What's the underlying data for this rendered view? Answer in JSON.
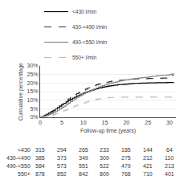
{
  "chart_data": {
    "type": "step",
    "xlabel": "Follow-up time (years)",
    "ylabel": "Cumulative percentage",
    "xlim": [
      0,
      31.5
    ],
    "ylim": [
      0,
      0.3
    ],
    "xticks": [
      0,
      5,
      10,
      15,
      20,
      25,
      30
    ],
    "yticks": [
      {
        "value": 0.0,
        "label": "0%"
      },
      {
        "value": 0.05,
        "label": "5%"
      },
      {
        "value": 0.1,
        "label": "10%"
      },
      {
        "value": 0.15,
        "label": "15%"
      },
      {
        "value": 0.2,
        "label": "20%"
      },
      {
        "value": 0.25,
        "label": "25%"
      },
      {
        "value": 0.3,
        "label": "30%"
      }
    ],
    "grid": "y",
    "legend": "upper left",
    "x": [
      0,
      0.3,
      0.6,
      1,
      1.5,
      2,
      2.5,
      3,
      3.5,
      4,
      4.5,
      5,
      5.5,
      6,
      6.5,
      7,
      7.5,
      8,
      8.5,
      9,
      9.5,
      10,
      10.5,
      11,
      11.5,
      12,
      12.5,
      13,
      13.5,
      14,
      14.5,
      15,
      15.5,
      16,
      16.5,
      17,
      17.5,
      18,
      18.5,
      19,
      19.5,
      20,
      20.5,
      21,
      21.5,
      22,
      22.5,
      23,
      23.5,
      24,
      24.5,
      25,
      25.5,
      26,
      26.5,
      27,
      27.5,
      28,
      28.5,
      29,
      29.5,
      30,
      30.5,
      31
    ],
    "series": [
      {
        "name": "<430 l/min",
        "color": "#000000",
        "line_style": "solid",
        "values": [
          0,
          0.003,
          0.007,
          0.012,
          0.018,
          0.025,
          0.033,
          0.04,
          0.048,
          0.057,
          0.065,
          0.075,
          0.082,
          0.09,
          0.098,
          0.105,
          0.112,
          0.118,
          0.124,
          0.13,
          0.136,
          0.141,
          0.146,
          0.15,
          0.155,
          0.159,
          0.163,
          0.167,
          0.17,
          0.173,
          0.176,
          0.179,
          0.181,
          0.183,
          0.185,
          0.187,
          0.188,
          0.19,
          0.191,
          0.192,
          0.193,
          0.194,
          0.195,
          0.196,
          0.197,
          0.198,
          0.199,
          0.199,
          0.2,
          0.2,
          0.2,
          0.201,
          0.201,
          0.201,
          0.201,
          0.202,
          0.202,
          0.202,
          0.202,
          0.202,
          0.203,
          0.203,
          0.203,
          0.203
        ]
      },
      {
        "name": "430-<490 l/min",
        "color": "#333333",
        "line_style": "dashed",
        "values": [
          0,
          0.002,
          0.005,
          0.009,
          0.015,
          0.022,
          0.03,
          0.038,
          0.047,
          0.056,
          0.066,
          0.076,
          0.087,
          0.097,
          0.107,
          0.116,
          0.124,
          0.132,
          0.139,
          0.146,
          0.153,
          0.159,
          0.165,
          0.171,
          0.176,
          0.181,
          0.186,
          0.19,
          0.194,
          0.197,
          0.2,
          0.203,
          0.205,
          0.208,
          0.21,
          0.212,
          0.213,
          0.215,
          0.216,
          0.218,
          0.219,
          0.22,
          0.221,
          0.222,
          0.223,
          0.224,
          0.224,
          0.225,
          0.225,
          0.226,
          0.226,
          0.227,
          0.227,
          0.227,
          0.228,
          0.228,
          0.228,
          0.228,
          0.229,
          0.229,
          0.229,
          0.245,
          0.245,
          0.245
        ]
      },
      {
        "name": "490-<550 l/min",
        "color": "#888888",
        "line_style": "solid",
        "values": [
          0,
          0.002,
          0.004,
          0.007,
          0.011,
          0.016,
          0.021,
          0.027,
          0.034,
          0.041,
          0.049,
          0.057,
          0.065,
          0.074,
          0.083,
          0.092,
          0.1,
          0.108,
          0.116,
          0.123,
          0.13,
          0.137,
          0.143,
          0.149,
          0.155,
          0.161,
          0.166,
          0.171,
          0.176,
          0.181,
          0.185,
          0.189,
          0.193,
          0.197,
          0.2,
          0.203,
          0.206,
          0.209,
          0.212,
          0.215,
          0.217,
          0.219,
          0.221,
          0.223,
          0.225,
          0.226,
          0.228,
          0.229,
          0.231,
          0.232,
          0.234,
          0.235,
          0.237,
          0.239,
          0.24,
          0.242,
          0.243,
          0.244,
          0.245,
          0.246,
          0.247,
          0.25,
          0.253,
          0.255
        ]
      },
      {
        "name": "550+ l/min",
        "color": "#bbbbbb",
        "line_style": "dashed",
        "values": [
          0,
          0.001,
          0.002,
          0.004,
          0.006,
          0.009,
          0.012,
          0.016,
          0.02,
          0.024,
          0.029,
          0.034,
          0.039,
          0.044,
          0.05,
          0.055,
          0.061,
          0.066,
          0.071,
          0.076,
          0.08,
          0.084,
          0.088,
          0.092,
          0.096,
          0.099,
          0.102,
          0.105,
          0.107,
          0.109,
          0.111,
          0.113,
          0.114,
          0.115,
          0.116,
          0.117,
          0.117,
          0.118,
          0.118,
          0.118,
          0.118,
          0.118,
          0.118,
          0.118,
          0.118,
          0.118,
          0.118,
          0.118,
          0.118,
          0.118,
          0.118,
          0.118,
          0.118,
          0.118,
          0.118,
          0.118,
          0.118,
          0.118,
          0.118,
          0.118,
          0.118,
          0.118,
          0.118,
          0.118
        ]
      }
    ],
    "table": [
      {
        "name": "<430",
        "values": [
          315,
          294,
          265,
          233,
          185,
          144,
          64
        ]
      },
      {
        "name": "430-<490",
        "values": [
          385,
          373,
          349,
          309,
          275,
          212,
          110
        ]
      },
      {
        "name": "490-<550",
        "values": [
          584,
          573,
          551,
          522,
          479,
          421,
          213
        ]
      },
      {
        "name": "550+",
        "values": [
          878,
          852,
          842,
          809,
          768,
          710,
          401
        ]
      }
    ]
  }
}
